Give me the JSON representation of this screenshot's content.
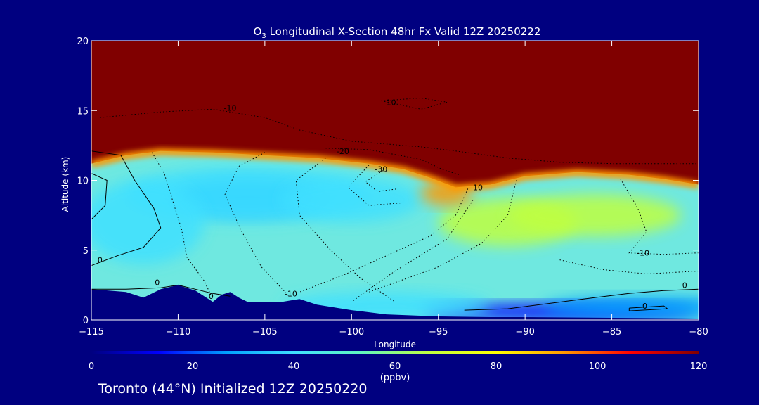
{
  "chart_data": {
    "type": "heatmap",
    "title": "O3 Longitudinal X-Section 48hr  Fx Valid 12Z 20250222",
    "title_parts": {
      "species": "O",
      "subscript": "3",
      "rest": " Longitudinal X-Section 48hr  Fx Valid 12Z 20250222"
    },
    "xlabel": "Longitude",
    "ylabel": "Altitude (km)",
    "xlim": [
      -115,
      -80
    ],
    "ylim": [
      0,
      20
    ],
    "x_ticks": [
      -115,
      -110,
      -105,
      -100,
      -95,
      -90,
      -85,
      -80
    ],
    "x_tick_labels": [
      "−115",
      "−110",
      "−105",
      "−100",
      "−95",
      "−90",
      "−85",
      "−80"
    ],
    "y_ticks": [
      0,
      5,
      10,
      15,
      20
    ],
    "y_tick_labels": [
      "0",
      "5",
      "10",
      "15",
      "20"
    ],
    "colorbar": {
      "min": 0,
      "max": 120,
      "ticks": [
        0,
        20,
        40,
        60,
        80,
        100,
        120
      ],
      "tick_labels": [
        "0",
        "20",
        "40",
        "60",
        "80",
        "100",
        "120"
      ],
      "unit": "(ppbv)",
      "colors": [
        "#000080",
        "#0000ff",
        "#00a0ff",
        "#40e0ff",
        "#60f5c0",
        "#c0ff40",
        "#ffff00",
        "#ff9900",
        "#ff0000",
        "#800000"
      ]
    },
    "tropopause_km": [
      [
        -115,
        11.2
      ],
      [
        -113,
        11.8
      ],
      [
        -111,
        12.1
      ],
      [
        -108,
        12.0
      ],
      [
        -105,
        11.8
      ],
      [
        -102,
        11.6
      ],
      [
        -99,
        11.2
      ],
      [
        -97,
        10.8
      ],
      [
        -95.5,
        10.2
      ],
      [
        -94,
        9.5
      ],
      [
        -92,
        9.7
      ],
      [
        -90,
        10.3
      ],
      [
        -87,
        10.6
      ],
      [
        -84,
        10.4
      ],
      [
        -82,
        10.1
      ],
      [
        -80,
        9.7
      ]
    ],
    "terrain_km": [
      [
        -115,
        2.2
      ],
      [
        -114,
        2.1
      ],
      [
        -113,
        2.0
      ],
      [
        -112,
        1.6
      ],
      [
        -111,
        2.2
      ],
      [
        -110,
        2.5
      ],
      [
        -109,
        2.1
      ],
      [
        -108,
        1.3
      ],
      [
        -107.5,
        1.8
      ],
      [
        -107,
        2.0
      ],
      [
        -106.5,
        1.6
      ],
      [
        -106,
        1.3
      ],
      [
        -104,
        1.3
      ],
      [
        -103,
        1.5
      ],
      [
        -102,
        1.1
      ],
      [
        -100,
        0.7
      ],
      [
        -98,
        0.4
      ],
      [
        -95,
        0.25
      ],
      [
        -92,
        0.2
      ],
      [
        -90,
        0.2
      ],
      [
        -85,
        0.15
      ],
      [
        -80,
        0.1
      ]
    ],
    "ozone_fields": [
      {
        "lon": -106,
        "alt": 8.8,
        "value": 32,
        "rx": 4.5,
        "ry": 1.3
      },
      {
        "lon": -106,
        "alt": 9.0,
        "value": 38,
        "rx": 7.0,
        "ry": 2.0
      },
      {
        "lon": -100,
        "alt": 8.6,
        "value": 44,
        "rx": 4.0,
        "ry": 1.6
      },
      {
        "lon": -112,
        "alt": 7.0,
        "value": 45,
        "rx": 3.5,
        "ry": 3.0
      },
      {
        "lon": -91,
        "alt": 7.0,
        "value": 67,
        "rx": 4.0,
        "ry": 1.7
      },
      {
        "lon": -86,
        "alt": 7.5,
        "value": 70,
        "rx": 5.0,
        "ry": 1.5
      },
      {
        "lon": -94.5,
        "alt": 9.1,
        "value": 92,
        "rx": 1.5,
        "ry": 0.9
      },
      {
        "lon": -88,
        "alt": 0.6,
        "value": 12,
        "rx": 8.0,
        "ry": 0.6
      },
      {
        "lon": -83,
        "alt": 0.9,
        "value": 20,
        "rx": 6.0,
        "ry": 0.8
      },
      {
        "lon": -98,
        "alt": 1.0,
        "value": 46,
        "rx": 6.0,
        "ry": 1.0
      }
    ],
    "contour_labels": [
      {
        "text": "-10",
        "lon": -107,
        "alt": 15.0
      },
      {
        "text": "-10",
        "lon": -97.8,
        "alt": 15.4
      },
      {
        "text": "-20",
        "lon": -100.5,
        "alt": 11.9
      },
      {
        "text": "-30",
        "lon": -98.3,
        "alt": 10.6
      },
      {
        "text": "-10",
        "lon": -92.8,
        "alt": 9.3
      },
      {
        "text": "-10",
        "lon": -83.2,
        "alt": 4.6
      },
      {
        "text": "0",
        "lon": -114.5,
        "alt": 4.1
      },
      {
        "text": "0",
        "lon": -111.2,
        "alt": 2.5
      },
      {
        "text": "0",
        "lon": -108.1,
        "alt": 1.5
      },
      {
        "text": "-10",
        "lon": -103.5,
        "alt": 1.7
      },
      {
        "text": "0",
        "lon": -80.8,
        "alt": 2.3
      },
      {
        "text": "0",
        "lon": -83.1,
        "alt": 0.8
      }
    ],
    "grid": false
  },
  "footer": {
    "text": "Toronto (44°N) Initialized 12Z 20250220"
  }
}
